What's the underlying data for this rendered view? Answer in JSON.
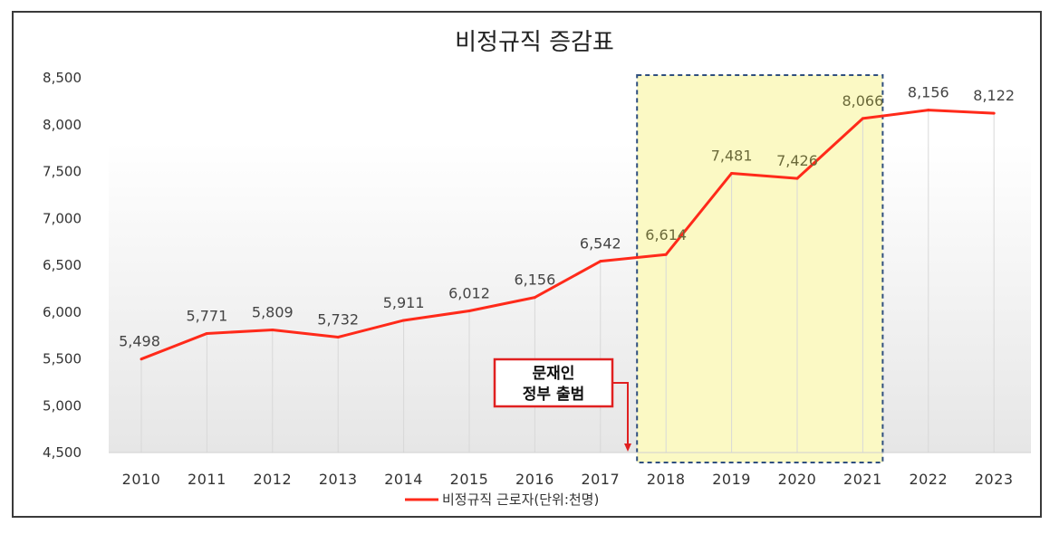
{
  "chart_data": {
    "type": "line",
    "title": "비정규직  증감표",
    "categories": [
      "2010",
      "2011",
      "2012",
      "2013",
      "2014",
      "2015",
      "2016",
      "2017",
      "2018",
      "2019",
      "2020",
      "2021",
      "2022",
      "2023"
    ],
    "series": [
      {
        "name": "비정규직 근로자(단위:천명)",
        "color": "#ff2a1a",
        "values": [
          5498,
          5771,
          5809,
          5732,
          5911,
          6012,
          6156,
          6542,
          6614,
          7481,
          7426,
          8066,
          8156,
          8122
        ],
        "labels": [
          "5,498",
          "5,771",
          "5,809",
          "5,732",
          "5,911",
          "6,012",
          "6,156",
          "6,542",
          "6,614",
          "7,481",
          "7,426",
          "8,066",
          "8,156",
          "8,122"
        ]
      }
    ],
    "y_ticks": [
      "4,500",
      "5,000",
      "5,500",
      "6,000",
      "6,500",
      "7,000",
      "7,500",
      "8,000",
      "8,500"
    ],
    "y_tick_values": [
      4500,
      5000,
      5500,
      6000,
      6500,
      7000,
      7500,
      8000,
      8500
    ],
    "ylim": [
      4500,
      8500
    ],
    "legend_position": "bottom",
    "highlight": {
      "from": "2018",
      "to": "2021",
      "fill": "#fbf9c4",
      "border": "#2f4f7f"
    },
    "annotation": {
      "lines": [
        "문재인",
        "정부 출범"
      ],
      "target": "2017-2018 boundary",
      "color": "#e02020"
    }
  }
}
